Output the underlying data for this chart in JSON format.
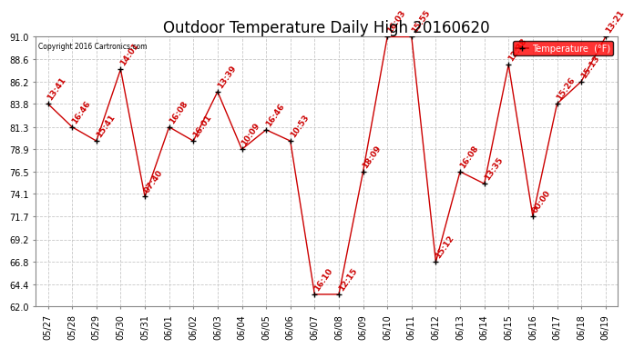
{
  "title": "Outdoor Temperature Daily High 20160620",
  "copyright": "Copyright 2016 Cartronics.com",
  "legend_label": "Temperature  (°F)",
  "x_labels": [
    "05/27",
    "05/28",
    "05/29",
    "05/30",
    "05/31",
    "06/01",
    "06/02",
    "06/03",
    "06/04",
    "06/05",
    "06/06",
    "06/07",
    "06/08",
    "06/09",
    "06/10",
    "06/11",
    "06/12",
    "06/13",
    "06/14",
    "06/15",
    "06/16",
    "06/17",
    "06/18",
    "06/19"
  ],
  "y_values": [
    83.8,
    81.3,
    79.8,
    87.5,
    73.8,
    81.3,
    79.8,
    85.1,
    78.9,
    81.0,
    79.8,
    63.3,
    63.3,
    76.5,
    91.0,
    91.0,
    66.8,
    76.5,
    75.2,
    88.0,
    71.7,
    83.8,
    86.2,
    91.0
  ],
  "time_labels": [
    "13:41",
    "16:46",
    "15:41",
    "14:01",
    "07:40",
    "16:08",
    "16:01",
    "13:39",
    "10:09",
    "16:46",
    "10:53",
    "16:10",
    "12:15",
    "18:09",
    "16:03",
    "15:55",
    "15:12",
    "16:08",
    "13:35",
    "12:38",
    "00:00",
    "15:26",
    "15:13",
    "13:21"
  ],
  "line_color": "#cc0000",
  "marker_color": "#000000",
  "bg_color": "#ffffff",
  "grid_color": "#c8c8c8",
  "ylim": [
    62.0,
    91.0
  ],
  "yticks": [
    62.0,
    64.4,
    66.8,
    69.2,
    71.7,
    74.1,
    76.5,
    78.9,
    81.3,
    83.8,
    86.2,
    88.6,
    91.0
  ],
  "title_fontsize": 12,
  "label_fontsize": 7,
  "annot_fontsize": 6.5
}
